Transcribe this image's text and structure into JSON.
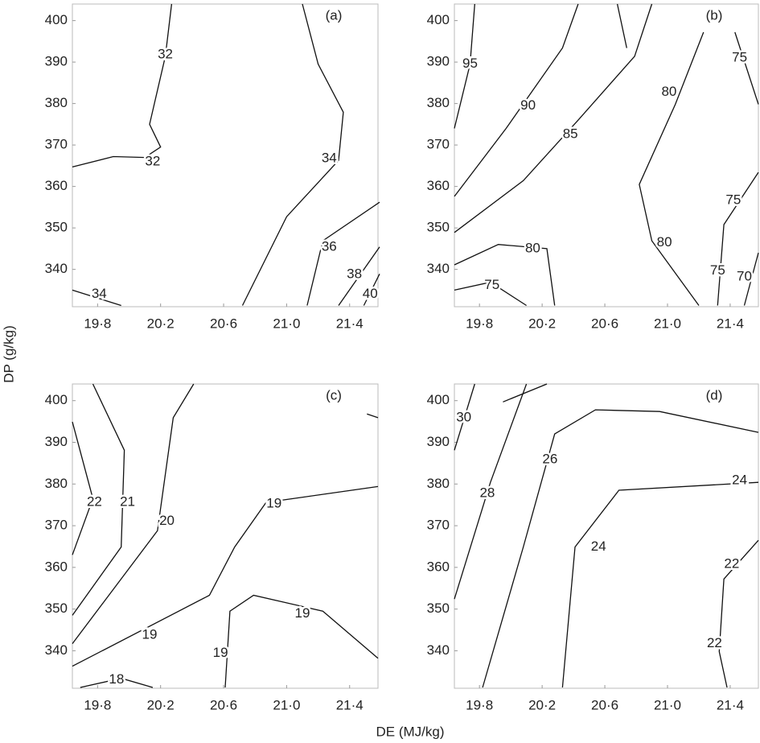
{
  "xlabel": "DE (MJ/kg)",
  "ylabel": "DP (g/kg)",
  "chart_data": [
    {
      "type": "contour",
      "title": "(a)",
      "xlim": [
        19.64,
        21.58
      ],
      "ylim": [
        331,
        404
      ],
      "xticks": [
        {
          "value": 19.8,
          "label": "19·8"
        },
        {
          "value": 20.2,
          "label": "20·2"
        },
        {
          "value": 20.6,
          "label": "20·6"
        },
        {
          "value": 21.0,
          "label": "21·0"
        },
        {
          "value": 21.4,
          "label": "21·4"
        }
      ],
      "yticks": [
        340,
        350,
        360,
        370,
        380,
        390,
        400
      ],
      "contours": [
        {
          "x": [
            19.64,
            19.9,
            20.1,
            20.2,
            20.13,
            20.23,
            20.27
          ],
          "y": [
            364.7,
            367.2,
            367,
            369.5,
            375,
            391.4,
            404
          ]
        },
        {
          "x": [
            21.1,
            21.2,
            21.36,
            21.33,
            21.0,
            20.72
          ],
          "y": [
            404,
            389.5,
            377.9,
            366.3,
            352.7,
            331.3
          ]
        },
        {
          "x": [
            19.64,
            19.95
          ],
          "y": [
            335,
            331.3
          ]
        },
        {
          "x": [
            21.59,
            21.23,
            21.13
          ],
          "y": [
            356.2,
            346.9,
            331.3
          ]
        },
        {
          "x": [
            21.59,
            21.33
          ],
          "y": [
            345.4,
            331.3
          ]
        },
        {
          "x": [
            21.59,
            21.49
          ],
          "y": [
            338.9,
            331.3
          ]
        }
      ],
      "labels": [
        {
          "level": 32,
          "x": 20.23,
          "y": 391.8
        },
        {
          "level": 32,
          "x": 20.15,
          "y": 365.9
        },
        {
          "level": 34,
          "x": 21.27,
          "y": 366.7
        },
        {
          "level": 34,
          "x": 19.81,
          "y": 334
        },
        {
          "level": 36,
          "x": 21.27,
          "y": 345.4
        },
        {
          "level": 38,
          "x": 21.43,
          "y": 338.8
        },
        {
          "level": 40,
          "x": 21.53,
          "y": 334
        }
      ]
    },
    {
      "type": "contour",
      "title": "(b)",
      "xlim": [
        19.64,
        21.58
      ],
      "ylim": [
        331,
        404
      ],
      "xticks": [
        {
          "value": 19.8,
          "label": "19·8"
        },
        {
          "value": 20.2,
          "label": "20·2"
        },
        {
          "value": 20.6,
          "label": "20·6"
        },
        {
          "value": 21.0,
          "label": "21·0"
        },
        {
          "value": 21.4,
          "label": "21·4"
        }
      ],
      "yticks": [
        340,
        350,
        360,
        370,
        380,
        390,
        400
      ],
      "contours": [
        {
          "x": [
            19.64,
            19.74,
            19.77
          ],
          "y": [
            374,
            389.5,
            404
          ]
        },
        {
          "x": [
            19.64,
            19.97,
            20.33,
            20.43
          ],
          "y": [
            357.6,
            374,
            393.4,
            404
          ]
        },
        {
          "x": [
            19.64,
            20.08,
            20.43,
            20.79,
            20.9
          ],
          "y": [
            348.9,
            361.4,
            376,
            391.4,
            404
          ]
        },
        {
          "x": [
            21.23,
            21.05,
            20.82,
            20.9,
            21.2
          ],
          "y": [
            397.2,
            379.8,
            360.5,
            346.9,
            331.3
          ]
        },
        {
          "x": [
            20.68,
            20.74
          ],
          "y": [
            404,
            393.4
          ]
        },
        {
          "x": [
            19.64,
            19.92,
            20.23,
            20.28
          ],
          "y": [
            341.1,
            346,
            345,
            331.3
          ]
        },
        {
          "x": [
            19.64,
            19.87,
            20.1
          ],
          "y": [
            335,
            336.9,
            331.3
          ]
        },
        {
          "x": [
            21.43,
            21.58
          ],
          "y": [
            397.2,
            379.8
          ]
        },
        {
          "x": [
            21.58,
            21.36,
            21.32
          ],
          "y": [
            363.4,
            350.8,
            331.3
          ]
        },
        {
          "x": [
            21.58,
            21.49
          ],
          "y": [
            344,
            331.3
          ]
        }
      ],
      "labels": [
        {
          "level": 95,
          "x": 19.74,
          "y": 389.5
        },
        {
          "level": 90,
          "x": 20.11,
          "y": 379.4
        },
        {
          "level": 85,
          "x": 20.38,
          "y": 372.5
        },
        {
          "level": 80,
          "x": 21.01,
          "y": 382.7
        },
        {
          "level": 80,
          "x": 20.98,
          "y": 346.4
        },
        {
          "level": 80,
          "x": 20.14,
          "y": 345
        },
        {
          "level": 75,
          "x": 19.88,
          "y": 336.1
        },
        {
          "level": 75,
          "x": 21.46,
          "y": 391
        },
        {
          "level": 75,
          "x": 21.42,
          "y": 356.6
        },
        {
          "level": 75,
          "x": 21.32,
          "y": 339.6
        },
        {
          "level": 70,
          "x": 21.49,
          "y": 338.2
        }
      ]
    },
    {
      "type": "contour",
      "title": "(c)",
      "xlim": [
        19.64,
        21.58
      ],
      "ylim": [
        331,
        404
      ],
      "xticks": [
        {
          "value": 19.8,
          "label": "19·8"
        },
        {
          "value": 20.2,
          "label": "20·2"
        },
        {
          "value": 20.6,
          "label": "20·6"
        },
        {
          "value": 21.0,
          "label": "21·0"
        },
        {
          "value": 21.4,
          "label": "21·4"
        }
      ],
      "yticks": [
        340,
        350,
        360,
        370,
        380,
        390,
        400
      ],
      "contours": [
        {
          "x": [
            19.64,
            19.77,
            19.64
          ],
          "y": [
            394.9,
            376.5,
            363
          ]
        },
        {
          "x": [
            19.77,
            19.97,
            19.95,
            19.64
          ],
          "y": [
            404,
            388.1,
            364.9,
            348.5
          ]
        },
        {
          "x": [
            20.41,
            20.28,
            20.18,
            19.64
          ],
          "y": [
            404,
            395.9,
            368.8,
            341.7
          ]
        },
        {
          "x": [
            21.58,
            20.87,
            20.67,
            20.51,
            19.64
          ],
          "y": [
            379.4,
            375.6,
            364.9,
            353.3,
            336.3
          ]
        },
        {
          "x": [
            20.61,
            20.64,
            20.79,
            21.23,
            21.58
          ],
          "y": [
            331.2,
            349.5,
            353.3,
            349.5,
            338.2
          ]
        },
        {
          "x": [
            19.69,
            19.95,
            20.15
          ],
          "y": [
            331.2,
            333.4,
            331.2
          ]
        },
        {
          "x": [
            21.51,
            21.58
          ],
          "y": [
            396.8,
            395.9
          ]
        }
      ],
      "labels": [
        {
          "level": 22,
          "x": 19.78,
          "y": 375.6
        },
        {
          "level": 21,
          "x": 19.99,
          "y": 375.6
        },
        {
          "level": 20,
          "x": 20.24,
          "y": 371.1
        },
        {
          "level": 19,
          "x": 20.92,
          "y": 375.2
        },
        {
          "level": 19,
          "x": 20.13,
          "y": 343.7
        },
        {
          "level": 19,
          "x": 21.1,
          "y": 348.9
        },
        {
          "level": 19,
          "x": 20.58,
          "y": 339.4
        },
        {
          "level": 18,
          "x": 19.92,
          "y": 333
        }
      ]
    },
    {
      "type": "contour",
      "title": "(d)",
      "xlim": [
        19.64,
        21.58
      ],
      "ylim": [
        331,
        404
      ],
      "xticks": [
        {
          "value": 19.8,
          "label": "19·8"
        },
        {
          "value": 20.2,
          "label": "20·2"
        },
        {
          "value": 20.6,
          "label": "20·6"
        },
        {
          "value": 21.0,
          "label": "21·0"
        },
        {
          "value": 21.4,
          "label": "21·4"
        }
      ],
      "yticks": [
        340,
        350,
        360,
        370,
        380,
        390,
        400
      ],
      "contours": [
        {
          "x": [
            19.64,
            19.77
          ],
          "y": [
            388.1,
            404
          ]
        },
        {
          "x": [
            19.64,
            19.87,
            20.1
          ],
          "y": [
            352.4,
            380.4,
            404
          ]
        },
        {
          "x": [
            19.82,
            20.08,
            20.28,
            20.54,
            20.95,
            21.58
          ],
          "y": [
            331.2,
            364.9,
            392,
            397.8,
            397.4,
            392.4
          ]
        },
        {
          "x": [
            19.95,
            20.23
          ],
          "y": [
            399.7,
            404
          ]
        },
        {
          "x": [
            20.33,
            20.41,
            20.69,
            21.58
          ],
          "y": [
            331.2,
            364.9,
            378.5,
            380.4
          ]
        },
        {
          "x": [
            21.58,
            21.36,
            21.33,
            21.38
          ],
          "y": [
            366.5,
            357.2,
            339.8,
            331.2
          ]
        }
      ],
      "labels": [
        {
          "level": 30,
          "x": 19.7,
          "y": 395.9
        },
        {
          "level": 28,
          "x": 19.85,
          "y": 377.7
        },
        {
          "level": 26,
          "x": 20.25,
          "y": 385.8
        },
        {
          "level": 24,
          "x": 20.56,
          "y": 364.9
        },
        {
          "level": 24,
          "x": 21.46,
          "y": 380.8
        },
        {
          "level": 22,
          "x": 21.41,
          "y": 360.7
        },
        {
          "level": 22,
          "x": 21.3,
          "y": 341.7
        }
      ]
    }
  ]
}
